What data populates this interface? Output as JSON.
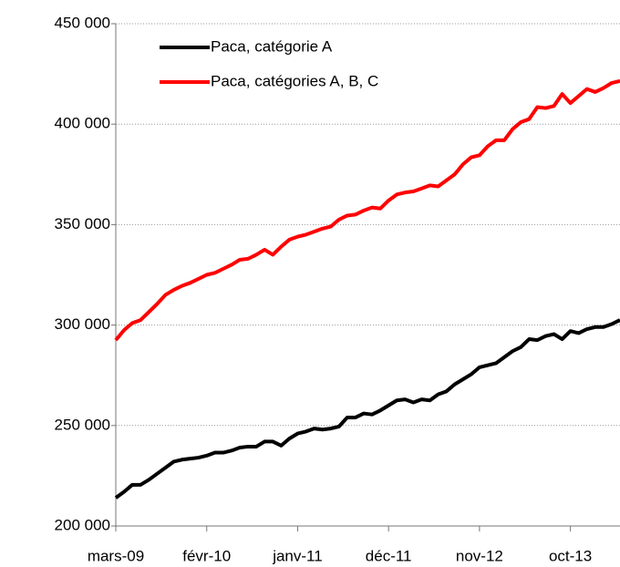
{
  "chart_data": {
    "type": "line",
    "categories": [
      "mars-09",
      null,
      null,
      null,
      null,
      null,
      null,
      null,
      null,
      null,
      null,
      "févr-10",
      null,
      null,
      null,
      null,
      null,
      null,
      null,
      null,
      null,
      null,
      "janv-11",
      null,
      null,
      null,
      null,
      null,
      null,
      null,
      null,
      null,
      null,
      "déc-11",
      null,
      null,
      null,
      null,
      null,
      null,
      null,
      null,
      null,
      null,
      "nov-12",
      null,
      null,
      null,
      null,
      null,
      null,
      null,
      null,
      null,
      null,
      "oct-13",
      null,
      null,
      null,
      null,
      null,
      null
    ],
    "series": [
      {
        "name": "Paca, catégorie A",
        "color": "#000000",
        "values": [
          214000,
          217000,
          220500,
          220500,
          223000,
          226000,
          229000,
          232000,
          233000,
          233500,
          234000,
          235000,
          236500,
          236500,
          237500,
          239000,
          239500,
          239500,
          242000,
          242000,
          240000,
          243500,
          246000,
          247000,
          248500,
          248000,
          248500,
          249500,
          254000,
          254000,
          256000,
          255500,
          257500,
          260000,
          262500,
          263000,
          261500,
          263000,
          262500,
          265500,
          267000,
          270500,
          273000,
          275500,
          279000,
          280000,
          281000,
          284000,
          287000,
          289000,
          293000,
          292500,
          294500,
          295500,
          293000,
          297000,
          296000,
          298000,
          299000,
          299000,
          300500,
          302500
        ]
      },
      {
        "name": "Paca, catégories A, B, C",
        "color": "#ff0000",
        "values": [
          292500,
          297500,
          301000,
          302500,
          306500,
          310500,
          315000,
          317500,
          319500,
          321000,
          323000,
          325000,
          326000,
          328000,
          330000,
          332500,
          333000,
          335000,
          337500,
          335000,
          339000,
          342500,
          344000,
          345000,
          346500,
          348000,
          349000,
          352500,
          354500,
          355000,
          357000,
          358500,
          358000,
          362000,
          365000,
          366000,
          366500,
          368000,
          369500,
          369000,
          372000,
          375000,
          380000,
          383500,
          384500,
          389000,
          392000,
          392000,
          397500,
          401000,
          402500,
          408500,
          408000,
          409000,
          415000,
          410500,
          414000,
          417500,
          416000,
          418000,
          420500,
          421500
        ]
      }
    ],
    "ylim": [
      200000,
      450000
    ],
    "yticks": [
      {
        "value": 200000,
        "label": "200 000"
      },
      {
        "value": 250000,
        "label": "250 000"
      },
      {
        "value": 300000,
        "label": "300 000"
      },
      {
        "value": 350000,
        "label": "350 000"
      },
      {
        "value": 400000,
        "label": "400 000"
      },
      {
        "value": 450000,
        "label": "450 000"
      }
    ],
    "grid": true,
    "legend": "top-left"
  }
}
